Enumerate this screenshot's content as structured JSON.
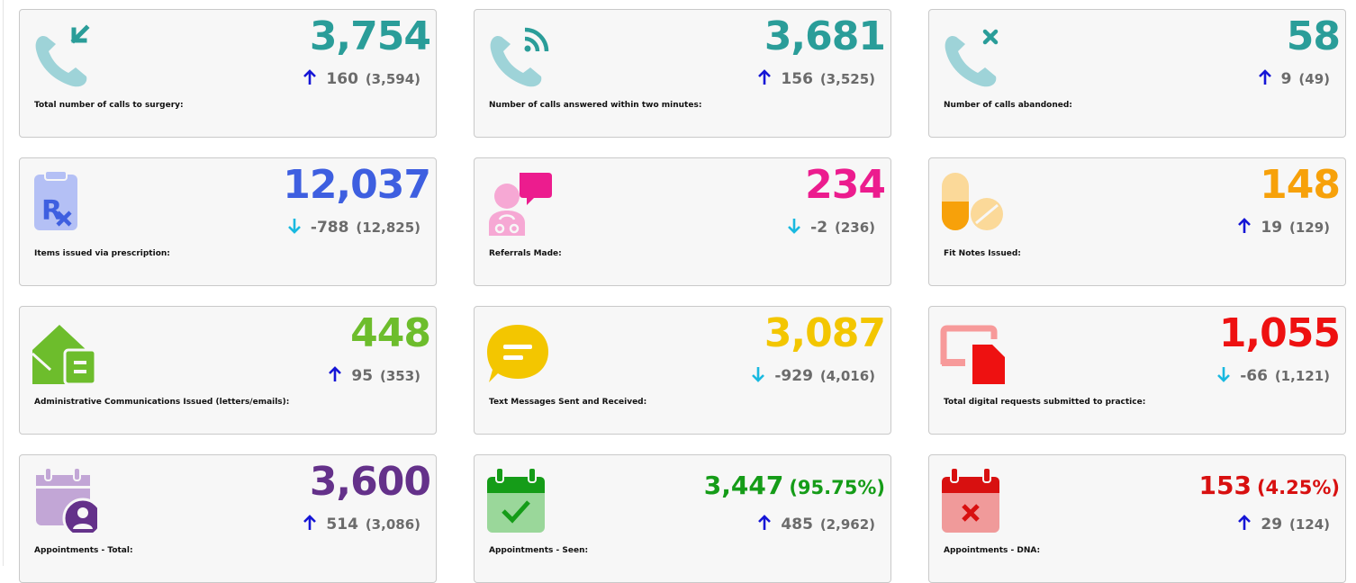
{
  "colors": {
    "teal": "#2a9d99",
    "blue": "#3e5fe0",
    "magenta": "#ec1c8e",
    "orange": "#f7a10a",
    "green": "#6dbd2c",
    "yellow": "#f3c600",
    "red": "#ee1111",
    "purple": "#64318a",
    "dark_green": "#159c18",
    "dark_red": "#d81010",
    "arrow_up": "#1515d6",
    "arrow_down": "#19b9e0"
  },
  "cards": [
    {
      "id": "calls-total",
      "label": "Total number of calls to surgery:",
      "value": "3,754",
      "change": "160",
      "previous": "(3,594)",
      "direction": "up",
      "icon": "phone-incoming-icon"
    },
    {
      "id": "calls-answered",
      "label": "Number of calls answered within two minutes:",
      "value": "3,681",
      "change": "156",
      "previous": "(3,525)",
      "direction": "up",
      "icon": "phone-ringing-icon"
    },
    {
      "id": "calls-abandoned",
      "label": "Number of calls abandoned:",
      "value": "58",
      "change": "9",
      "previous": "(49)",
      "direction": "up",
      "icon": "phone-missed-icon"
    },
    {
      "id": "prescriptions",
      "label": "Items issued via prescription:",
      "value": "12,037",
      "change": "-788",
      "previous": "(12,825)",
      "direction": "down",
      "icon": "prescription-clipboard-icon"
    },
    {
      "id": "referrals",
      "label": "Referrals Made:",
      "value": "234",
      "change": "-2",
      "previous": "(236)",
      "direction": "down",
      "icon": "doctor-chat-icon"
    },
    {
      "id": "fit-notes",
      "label": "Fit Notes Issued:",
      "value": "148",
      "change": "19",
      "previous": "(129)",
      "direction": "up",
      "icon": "pills-icon"
    },
    {
      "id": "admin-comms",
      "label": "Administrative Communications Issued (letters/emails):",
      "value": "448",
      "change": "95",
      "previous": "(353)",
      "direction": "up",
      "icon": "mail-house-icon"
    },
    {
      "id": "text-messages",
      "label": "Text Messages Sent and Received:",
      "value": "3,087",
      "change": "-929",
      "previous": "(4,016)",
      "direction": "down",
      "icon": "message-bubble-icon"
    },
    {
      "id": "digital-requests",
      "label": "Total digital requests submitted to practice:",
      "value": "1,055",
      "change": "-66",
      "previous": "(1,121)",
      "direction": "down",
      "icon": "digital-request-icon"
    },
    {
      "id": "appointments-total",
      "label": "Appointments - Total:",
      "value": "3,600",
      "percent": "",
      "change": "514",
      "previous": "(3,086)",
      "direction": "up",
      "icon": "calendar-user-icon"
    },
    {
      "id": "appointments-seen",
      "label": "Appointments - Seen:",
      "value": "3,447",
      "percent": "(95.75%)",
      "change": "485",
      "previous": "(2,962)",
      "direction": "up",
      "icon": "calendar-check-icon"
    },
    {
      "id": "appointments-dna",
      "label": "Appointments - DNA:",
      "value": "153",
      "percent": "(4.25%)",
      "change": "29",
      "previous": "(124)",
      "direction": "up",
      "icon": "calendar-x-icon"
    }
  ]
}
